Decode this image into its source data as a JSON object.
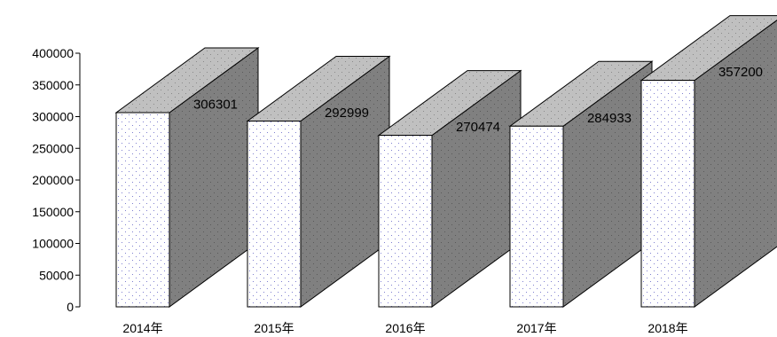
{
  "chart_data": {
    "type": "bar",
    "style": "3d-box",
    "categories": [
      "2014年",
      "2015年",
      "2016年",
      "2017年",
      "2018年"
    ],
    "values": [
      306301,
      292999,
      270474,
      284933,
      357200
    ],
    "data_labels": [
      "306301",
      "292999",
      "270474",
      "284933",
      "357200"
    ],
    "y_ticks": [
      "400000",
      "350000",
      "300000",
      "250000",
      "200000",
      "150000",
      "100000",
      "50000",
      "0"
    ],
    "ylim": [
      0,
      400000
    ],
    "title": "",
    "xlabel": "",
    "ylabel": "",
    "grid": false,
    "legend": "none",
    "colors": {
      "front_face": "#ffffff",
      "top_face": "#c0c0c0",
      "side_face": "#808080",
      "dot": "#7f7fd0",
      "outline": "#000000"
    }
  }
}
